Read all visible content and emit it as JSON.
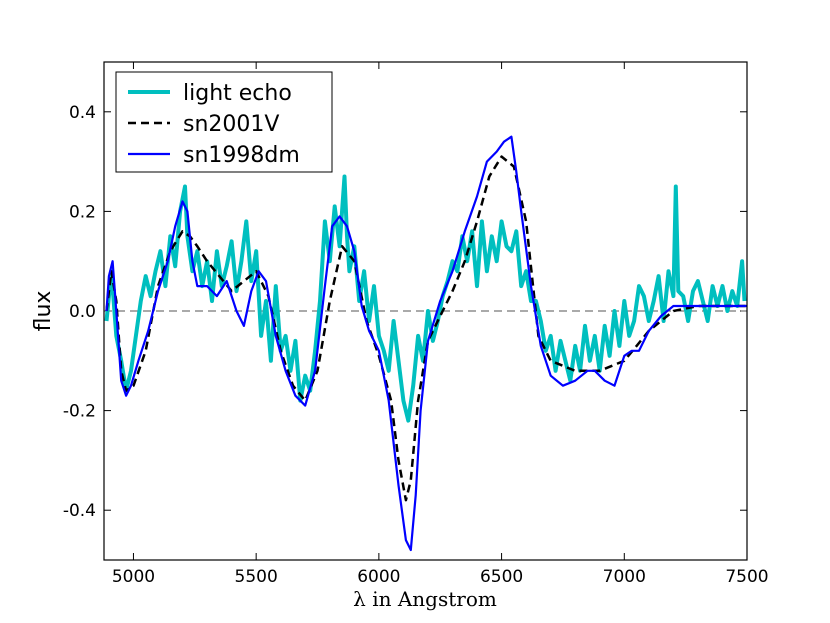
{
  "chart_data": {
    "type": "line",
    "title": "",
    "xlabel": "λ in Angstrom",
    "ylabel": "flux",
    "xlim": [
      4880,
      7500
    ],
    "ylim": [
      -0.5,
      0.5
    ],
    "xticks": [
      5000,
      5500,
      6000,
      6500,
      7000,
      7500
    ],
    "yticks": [
      -0.4,
      -0.2,
      0.0,
      0.2,
      0.4
    ],
    "ytick_labels": [
      "-0.4",
      "-0.2",
      "0.0",
      "0.2",
      "0.4"
    ],
    "xtick_labels": [
      "5000",
      "5500",
      "6000",
      "6500",
      "7000",
      "7500"
    ],
    "zero_line": 0.0,
    "legend_position": "upper-left",
    "series": [
      {
        "name": "light echo",
        "color": "#00bfbf",
        "style": "solid-thick",
        "x": [
          4890,
          4910,
          4930,
          4950,
          4970,
          4990,
          5010,
          5030,
          5050,
          5070,
          5090,
          5110,
          5130,
          5150,
          5170,
          5190,
          5210,
          5220,
          5240,
          5260,
          5280,
          5300,
          5320,
          5340,
          5360,
          5380,
          5400,
          5420,
          5440,
          5460,
          5480,
          5500,
          5520,
          5540,
          5560,
          5580,
          5600,
          5620,
          5640,
          5660,
          5680,
          5700,
          5720,
          5740,
          5760,
          5780,
          5800,
          5820,
          5840,
          5860,
          5870,
          5880,
          5900,
          5920,
          5940,
          5960,
          5980,
          6000,
          6020,
          6040,
          6060,
          6080,
          6100,
          6120,
          6140,
          6160,
          6180,
          6200,
          6220,
          6240,
          6260,
          6280,
          6300,
          6320,
          6340,
          6360,
          6380,
          6400,
          6420,
          6440,
          6460,
          6480,
          6500,
          6520,
          6540,
          6560,
          6580,
          6600,
          6620,
          6640,
          6660,
          6680,
          6700,
          6720,
          6740,
          6760,
          6780,
          6800,
          6820,
          6840,
          6860,
          6880,
          6900,
          6920,
          6940,
          6960,
          6980,
          7000,
          7020,
          7040,
          7060,
          7080,
          7100,
          7120,
          7140,
          7160,
          7180,
          7200,
          7210,
          7220,
          7240,
          7260,
          7280,
          7300,
          7320,
          7340,
          7360,
          7380,
          7400,
          7420,
          7440,
          7460,
          7480,
          7490
        ],
        "y": [
          -0.02,
          0.08,
          -0.05,
          -0.1,
          -0.16,
          -0.12,
          -0.05,
          0.02,
          0.07,
          0.03,
          0.08,
          0.12,
          0.05,
          0.15,
          0.09,
          0.2,
          0.25,
          0.15,
          0.08,
          0.12,
          0.05,
          0.1,
          0.02,
          0.12,
          0.05,
          0.09,
          0.14,
          0.04,
          0.1,
          0.18,
          0.06,
          0.12,
          -0.05,
          0.02,
          -0.1,
          0.05,
          -0.08,
          -0.05,
          -0.12,
          -0.06,
          -0.18,
          -0.13,
          -0.16,
          -0.08,
          0.02,
          0.18,
          0.1,
          0.21,
          0.13,
          0.27,
          0.15,
          0.08,
          0.13,
          0.02,
          0.08,
          -0.02,
          0.05,
          -0.05,
          -0.08,
          -0.12,
          -0.02,
          -0.1,
          -0.18,
          -0.22,
          -0.15,
          -0.05,
          -0.1,
          0.0,
          -0.06,
          -0.02,
          0.03,
          0.06,
          0.1,
          0.08,
          0.15,
          0.1,
          0.16,
          0.05,
          0.18,
          0.08,
          0.15,
          0.1,
          0.18,
          0.13,
          0.12,
          0.16,
          0.05,
          0.08,
          0.02,
          0.02,
          -0.02,
          -0.08,
          -0.05,
          -0.12,
          -0.06,
          -0.1,
          -0.14,
          -0.07,
          -0.12,
          -0.03,
          -0.1,
          -0.05,
          -0.12,
          -0.03,
          -0.09,
          0.0,
          -0.07,
          0.02,
          -0.05,
          -0.02,
          0.05,
          0.03,
          -0.02,
          0.02,
          0.07,
          -0.02,
          0.08,
          0.03,
          0.25,
          0.04,
          0.03,
          -0.02,
          0.04,
          0.06,
          0.02,
          -0.02,
          0.05,
          0.01,
          0.05,
          0.0,
          0.04,
          0.01,
          0.1,
          0.02
        ]
      },
      {
        "name": "sn2001V",
        "color": "#000000",
        "style": "dashed",
        "x": [
          4890,
          4910,
          4930,
          4950,
          4970,
          5000,
          5050,
          5100,
          5150,
          5200,
          5230,
          5260,
          5300,
          5350,
          5400,
          5450,
          5500,
          5550,
          5600,
          5650,
          5700,
          5750,
          5800,
          5850,
          5900,
          5950,
          6000,
          6050,
          6080,
          6110,
          6130,
          6160,
          6200,
          6250,
          6300,
          6350,
          6400,
          6450,
          6500,
          6550,
          6600,
          6650,
          6700,
          6750,
          6800,
          6850,
          6900,
          6950,
          7000,
          7050,
          7100,
          7200,
          7300,
          7400,
          7500
        ],
        "y": [
          0.0,
          0.08,
          0.02,
          -0.12,
          -0.16,
          -0.15,
          -0.08,
          0.05,
          0.12,
          0.16,
          0.15,
          0.13,
          0.1,
          0.07,
          0.04,
          0.06,
          0.08,
          0.03,
          -0.08,
          -0.15,
          -0.18,
          -0.12,
          0.02,
          0.13,
          0.1,
          -0.02,
          -0.09,
          -0.18,
          -0.3,
          -0.38,
          -0.34,
          -0.18,
          -0.06,
          -0.01,
          0.04,
          0.1,
          0.18,
          0.27,
          0.31,
          0.29,
          0.18,
          -0.05,
          -0.1,
          -0.11,
          -0.12,
          -0.12,
          -0.12,
          -0.11,
          -0.1,
          -0.07,
          -0.04,
          0.0,
          0.01,
          0.01,
          0.01
        ]
      },
      {
        "name": "sn1998dm",
        "color": "#0000ff",
        "style": "solid",
        "x": [
          4890,
          4900,
          4915,
          4930,
          4950,
          4970,
          4990,
          5020,
          5060,
          5100,
          5140,
          5170,
          5200,
          5220,
          5240,
          5260,
          5300,
          5340,
          5380,
          5420,
          5450,
          5480,
          5510,
          5540,
          5580,
          5620,
          5660,
          5700,
          5740,
          5780,
          5810,
          5840,
          5870,
          5900,
          5930,
          5960,
          6000,
          6040,
          6080,
          6110,
          6130,
          6150,
          6170,
          6200,
          6250,
          6300,
          6350,
          6400,
          6440,
          6480,
          6510,
          6540,
          6560,
          6580,
          6620,
          6660,
          6700,
          6750,
          6800,
          6850,
          6880,
          6920,
          6960,
          7000,
          7030,
          7060,
          7100,
          7150,
          7200,
          7250,
          7300,
          7350,
          7400,
          7450,
          7500
        ],
        "y": [
          0.0,
          0.07,
          0.1,
          0.0,
          -0.14,
          -0.17,
          -0.15,
          -0.1,
          -0.04,
          0.04,
          0.1,
          0.17,
          0.22,
          0.2,
          0.1,
          0.05,
          0.05,
          0.03,
          0.06,
          0.0,
          -0.03,
          0.04,
          0.08,
          0.06,
          -0.05,
          -0.12,
          -0.17,
          -0.19,
          -0.12,
          0.05,
          0.17,
          0.19,
          0.17,
          0.12,
          0.01,
          -0.04,
          -0.08,
          -0.18,
          -0.35,
          -0.46,
          -0.48,
          -0.37,
          -0.2,
          -0.06,
          0.02,
          0.08,
          0.16,
          0.23,
          0.3,
          0.32,
          0.34,
          0.35,
          0.28,
          0.2,
          0.05,
          -0.07,
          -0.13,
          -0.15,
          -0.14,
          -0.12,
          -0.12,
          -0.14,
          -0.15,
          -0.09,
          -0.08,
          -0.08,
          -0.04,
          -0.01,
          0.01,
          0.01,
          0.01,
          0.01,
          0.01,
          0.01,
          0.01
        ]
      }
    ]
  }
}
